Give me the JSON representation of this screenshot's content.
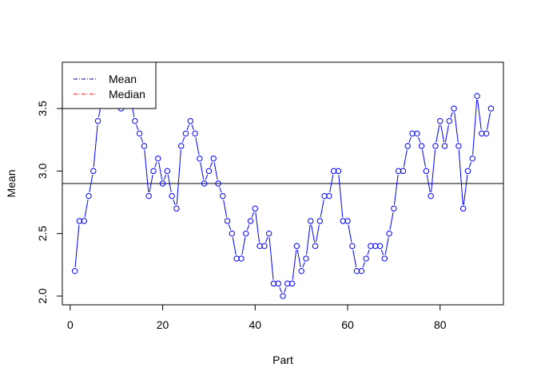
{
  "chart_data": {
    "type": "line",
    "title": "",
    "xlabel": "Part",
    "ylabel": "Mean",
    "xlim": [
      -1.7,
      93.7
    ],
    "ylim": [
      1.93,
      3.87
    ],
    "xticks": [
      0,
      20,
      40,
      60,
      80
    ],
    "yticks": [
      2.0,
      2.5,
      3.0,
      3.5
    ],
    "ytick_labels": [
      "2.0",
      "2.5",
      "3.0",
      "3.5"
    ],
    "grid": false,
    "series": [
      {
        "name": "",
        "color": "#0000ff",
        "marker": "open-circle",
        "x": [
          1,
          2,
          3,
          4,
          5,
          6,
          7,
          8,
          9,
          10,
          11,
          12,
          13,
          14,
          15,
          16,
          17,
          18,
          19,
          20,
          21,
          22,
          23,
          24,
          25,
          26,
          27,
          28,
          29,
          30,
          31,
          32,
          33,
          34,
          35,
          36,
          37,
          38,
          39,
          40,
          41,
          42,
          43,
          44,
          45,
          46,
          47,
          48,
          49,
          50,
          51,
          52,
          53,
          54,
          55,
          56,
          57,
          58,
          59,
          60,
          61,
          62,
          63,
          64,
          65,
          66,
          67,
          68,
          69,
          70,
          71,
          72,
          73,
          74,
          75,
          76,
          77,
          78,
          79,
          80,
          81,
          82,
          83,
          84,
          85,
          86,
          87,
          88,
          89,
          90,
          91
        ],
        "y": [
          2.2,
          2.6,
          2.6,
          2.8,
          3.0,
          3.4,
          3.6,
          3.7,
          3.7,
          3.6,
          3.5,
          3.6,
          3.6,
          3.4,
          3.3,
          3.2,
          2.8,
          3.0,
          3.1,
          2.9,
          3.0,
          2.8,
          2.7,
          3.2,
          3.3,
          3.4,
          3.3,
          3.1,
          2.9,
          3.0,
          3.1,
          2.9,
          2.8,
          2.6,
          2.5,
          2.3,
          2.3,
          2.5,
          2.6,
          2.7,
          2.4,
          2.4,
          2.5,
          2.1,
          2.1,
          2.0,
          2.1,
          2.1,
          2.4,
          2.2,
          2.3,
          2.6,
          2.4,
          2.6,
          2.8,
          2.8,
          3.0,
          3.0,
          2.6,
          2.6,
          2.4,
          2.2,
          2.2,
          2.3,
          2.4,
          2.4,
          2.4,
          2.3,
          2.5,
          2.7,
          3.0,
          3.0,
          3.2,
          3.3,
          3.3,
          3.2,
          3.0,
          2.8,
          3.2,
          3.4,
          3.2,
          3.4,
          3.5,
          3.2,
          2.7,
          3.0,
          3.1,
          3.6,
          3.3,
          3.3,
          3.5
        ]
      }
    ],
    "hlines": [
      {
        "name": "mean-line",
        "y": 2.9,
        "color": "#000000"
      }
    ],
    "legend": {
      "placement": "top-left",
      "entries": [
        {
          "label": "Mean",
          "color": "#00008b",
          "linestyle": "dash-dot"
        },
        {
          "label": "Median",
          "color": "#ff0000",
          "linestyle": "dash-dot"
        }
      ]
    }
  }
}
